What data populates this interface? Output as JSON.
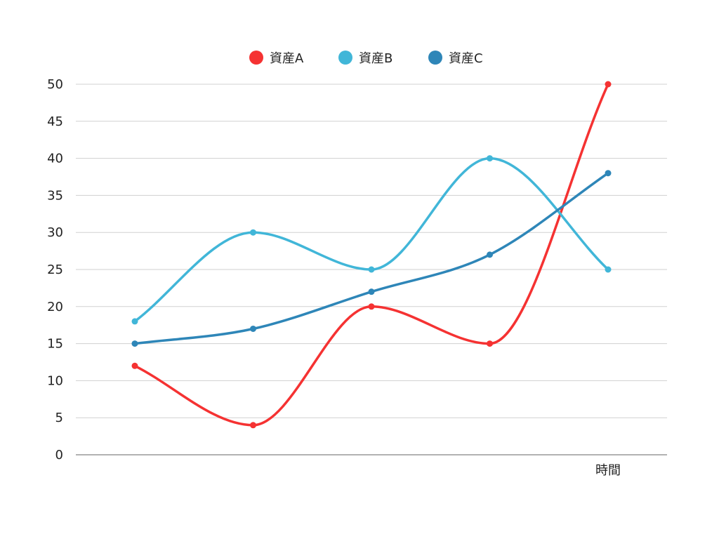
{
  "chart_data": {
    "type": "line",
    "title": "",
    "xlabel": "",
    "ylabel": "",
    "categories": [
      "",
      "",
      "",
      "",
      "時間"
    ],
    "ylim": [
      0,
      50
    ],
    "yticks": [
      0,
      5,
      10,
      15,
      20,
      25,
      30,
      35,
      40,
      45,
      50
    ],
    "grid": true,
    "smooth": true,
    "legend_position": "top",
    "series": [
      {
        "name": "資産A",
        "color": "#f53232",
        "values": [
          12,
          4,
          20,
          15,
          50
        ]
      },
      {
        "name": "資産B",
        "color": "#41b6d8",
        "values": [
          18,
          30,
          25,
          40,
          25
        ]
      },
      {
        "name": "資産C",
        "color": "#2e86b8",
        "values": [
          15,
          17,
          22,
          27,
          38
        ]
      }
    ]
  }
}
